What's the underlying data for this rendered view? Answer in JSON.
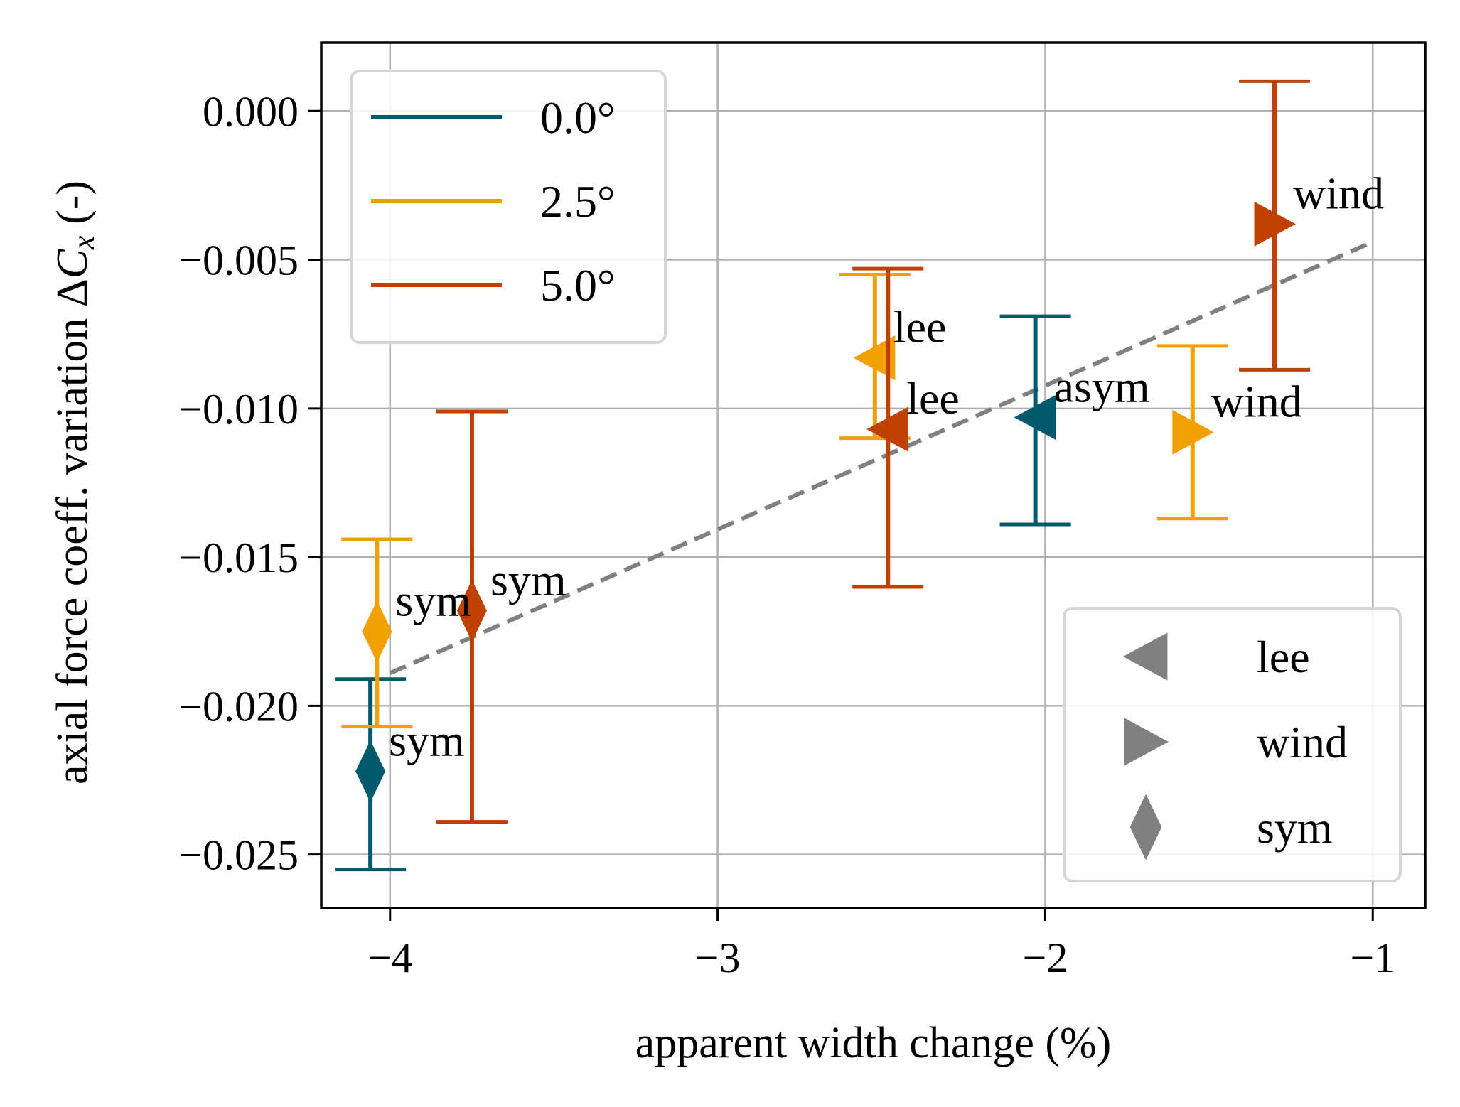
{
  "chart_data": {
    "type": "scatter",
    "xlabel": "apparent width change (%)",
    "ylabel_prefix": "axial force coeff. variation Δ",
    "ylabel_var": "C",
    "ylabel_sub": "x",
    "ylabel_suffix": " (-)",
    "xlim": [
      -4.21,
      -0.84
    ],
    "ylim": [
      -0.0268,
      0.0023
    ],
    "xticks": [
      -4,
      -3,
      -2,
      -1
    ],
    "xtick_labels": [
      "−4",
      "−3",
      "−2",
      "−1"
    ],
    "yticks": [
      0.0,
      -0.005,
      -0.01,
      -0.015,
      -0.02,
      -0.025
    ],
    "ytick_labels": [
      "0.000",
      "−0.005",
      "−0.010",
      "−0.015",
      "−0.020",
      "−0.025"
    ],
    "grid": true,
    "colors": {
      "0.0": "#005a6e",
      "2.5": "#f0a000",
      "5.0": "#c04000",
      "trend": "#808080",
      "legend_marker": "#808080"
    },
    "series": [
      {
        "name": "0.0°",
        "color_key": "0.0",
        "points": [
          {
            "x": -4.06,
            "y": -0.0222,
            "yerr_low": -0.0255,
            "yerr_high": -0.0191,
            "marker": "sym",
            "label": "sym"
          },
          {
            "x": -2.03,
            "y": -0.0103,
            "yerr_low": -0.0139,
            "yerr_high": -0.0069,
            "marker": "lee",
            "label": "asym"
          }
        ]
      },
      {
        "name": "2.5°",
        "color_key": "2.5",
        "points": [
          {
            "x": -4.04,
            "y": -0.0175,
            "yerr_low": -0.0207,
            "yerr_high": -0.0144,
            "marker": "sym",
            "label": "sym"
          },
          {
            "x": -2.52,
            "y": -0.0083,
            "yerr_low": -0.011,
            "yerr_high": -0.0055,
            "marker": "lee",
            "label": "lee"
          },
          {
            "x": -1.55,
            "y": -0.0108,
            "yerr_low": -0.0137,
            "yerr_high": -0.0079,
            "marker": "wind",
            "label": "wind"
          }
        ]
      },
      {
        "name": "5.0°",
        "color_key": "5.0",
        "points": [
          {
            "x": -3.75,
            "y": -0.0168,
            "yerr_low": -0.0239,
            "yerr_high": -0.0101,
            "marker": "sym",
            "label": "sym"
          },
          {
            "x": -2.48,
            "y": -0.0107,
            "yerr_low": -0.016,
            "yerr_high": -0.0053,
            "marker": "lee",
            "label": "lee"
          },
          {
            "x": -1.3,
            "y": -0.0038,
            "yerr_low": -0.0087,
            "yerr_high": 0.001,
            "marker": "wind",
            "label": "wind"
          }
        ]
      }
    ],
    "trend_line": {
      "style": "dashed",
      "x": [
        -4.0,
        -1.0
      ],
      "y": [
        -0.0189,
        -0.0044
      ]
    },
    "legend_colors": {
      "position": "top-left",
      "entries": [
        "0.0°",
        "2.5°",
        "5.0°"
      ]
    },
    "legend_markers": {
      "position": "bottom-right",
      "entries": [
        {
          "marker": "lee",
          "label": "lee"
        },
        {
          "marker": "wind",
          "label": "wind"
        },
        {
          "marker": "sym",
          "label": "sym"
        }
      ]
    }
  }
}
